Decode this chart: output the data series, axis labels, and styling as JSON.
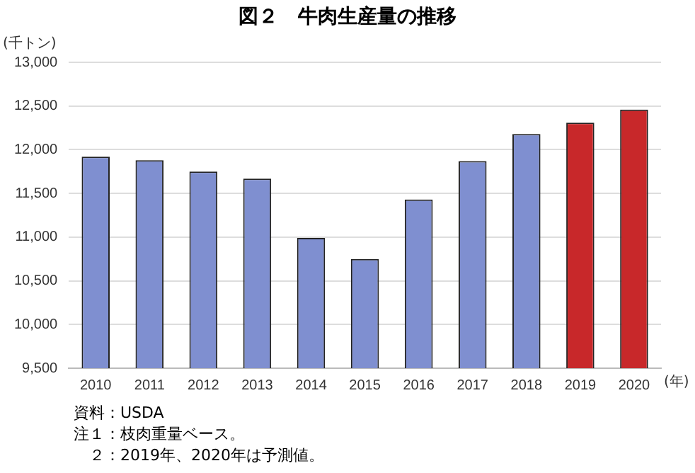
{
  "chart_data": {
    "type": "bar",
    "title": "図２　牛肉生産量の推移",
    "ylabel": "(千トン)",
    "xlabel": "(年)",
    "categories": [
      "2010",
      "2011",
      "2012",
      "2013",
      "2014",
      "2015",
      "2016",
      "2017",
      "2018",
      "2019",
      "2020"
    ],
    "values": [
      11920,
      11880,
      11750,
      11670,
      10990,
      10750,
      11430,
      11870,
      12180,
      12310,
      12460
    ],
    "colors": [
      "#7f8fd0",
      "#7f8fd0",
      "#7f8fd0",
      "#7f8fd0",
      "#7f8fd0",
      "#7f8fd0",
      "#7f8fd0",
      "#7f8fd0",
      "#7f8fd0",
      "#c8282a",
      "#c8282a"
    ],
    "ylim": [
      9500,
      13000
    ],
    "yticks": [
      {
        "value": 9500,
        "label": "9,500"
      },
      {
        "value": 10000,
        "label": "10,000"
      },
      {
        "value": 10500,
        "label": "10,500"
      },
      {
        "value": 11000,
        "label": "11,000"
      },
      {
        "value": 11500,
        "label": "11,500"
      },
      {
        "value": 12000,
        "label": "12,000"
      },
      {
        "value": 12500,
        "label": "12,500"
      },
      {
        "value": 13000,
        "label": "13,000"
      }
    ],
    "grid": "y",
    "annotations": [
      "資料：USDA",
      "注１：枝肉重量ベース。",
      "　２：2019年、2020年は予測値。"
    ]
  }
}
